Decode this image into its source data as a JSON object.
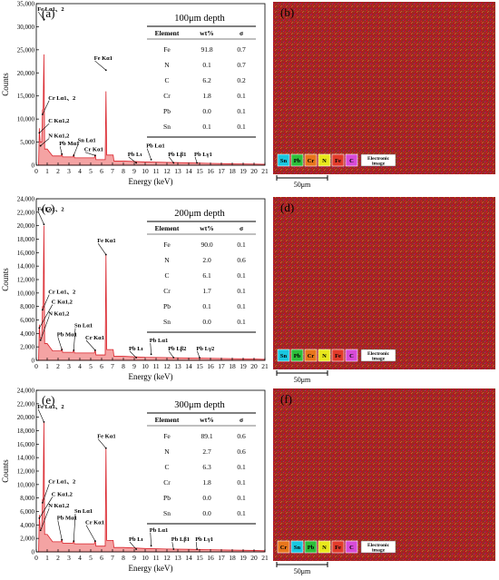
{
  "panels": [
    {
      "letter": "(a)",
      "depth": "100μm depth",
      "table": {
        "headers": [
          "Element",
          "wt%",
          "σ"
        ],
        "rows": [
          [
            "Fe",
            "91.8",
            "0.7"
          ],
          [
            "N",
            "0.1",
            "0.7"
          ],
          [
            "C",
            "6.2",
            "0.2"
          ],
          [
            "Cr",
            "1.8",
            "0.1"
          ],
          [
            "Pb",
            "0.0",
            "0.1"
          ],
          [
            "Sn",
            "0.1",
            "0.1"
          ]
        ]
      },
      "yticks": [
        "0",
        "5,000",
        "10,000",
        "15,000",
        "20,000",
        "25,000",
        "30,000",
        "35,000"
      ],
      "ymax": 35000,
      "map_letter": "(b)",
      "legend": [
        "Sn",
        "Pb",
        "Cr",
        "N",
        "Fe",
        "C"
      ],
      "legend_colors": [
        "#19c7e0",
        "#2dbf3a",
        "#e8761c",
        "#e8e81c",
        "#e23b2a",
        "#d84bd8"
      ],
      "legend_label": "Electronic image",
      "scale": "50μm",
      "annotations": [
        {
          "label": "Fe Lα1、2",
          "x": 0.7,
          "y": 31500,
          "tx": 0.1,
          "ty": 33400
        },
        {
          "label": "Cr Lα1、2",
          "x": 0.57,
          "y": 11000,
          "tx": 1.1,
          "ty": 14200
        },
        {
          "label": "C Kα1,2",
          "x": 0.28,
          "y": 7000,
          "tx": 1.1,
          "ty": 9200
        },
        {
          "label": "N Kα1,2",
          "x": 0.39,
          "y": 4200,
          "tx": 1.1,
          "ty": 6000
        },
        {
          "label": "Pb Mα1",
          "x": 2.35,
          "y": 2400,
          "tx": 2.1,
          "ty": 4300
        },
        {
          "label": "Sn Lα1",
          "x": 3.44,
          "y": 2100,
          "tx": 3.8,
          "ty": 5000
        },
        {
          "label": "Cr Kα1",
          "x": 5.41,
          "y": 2100,
          "tx": 4.4,
          "ty": 3000
        },
        {
          "label": "Fe Kα1",
          "x": 6.4,
          "y": 20600,
          "tx": 5.3,
          "ty": 22800
        },
        {
          "label": "Pb Lι",
          "x": 9.18,
          "y": 500,
          "tx": 8.4,
          "ty": 2000
        },
        {
          "label": "Pb Lα1",
          "x": 10.55,
          "y": 1200,
          "tx": 10.1,
          "ty": 3800
        },
        {
          "label": "Pb Lβ1",
          "x": 12.61,
          "y": 500,
          "tx": 12.1,
          "ty": 2000
        },
        {
          "label": "Pb Lγ1",
          "x": 14.76,
          "y": 500,
          "tx": 14.5,
          "ty": 2000
        }
      ]
    },
    {
      "letter": "(c)",
      "depth": "200μm depth",
      "table": {
        "headers": [
          "Element",
          "wt%",
          "σ"
        ],
        "rows": [
          [
            "Fe",
            "90.0",
            "0.1"
          ],
          [
            "N",
            "2.0",
            "0.6"
          ],
          [
            "C",
            "6.1",
            "0.1"
          ],
          [
            "Cr",
            "1.7",
            "0.1"
          ],
          [
            "Pb",
            "0.1",
            "0.1"
          ],
          [
            "Sn",
            "0.0",
            "0.1"
          ]
        ]
      },
      "yticks": [
        "0",
        "2,000",
        "4,000",
        "6,000",
        "8,000",
        "10,000",
        "12,000",
        "14,000",
        "16,000",
        "18,000",
        "20,000",
        "22,000",
        "24,000"
      ],
      "ymax": 24000,
      "map_letter": "(d)",
      "legend": [
        "Sn",
        "Pb",
        "Cr",
        "N",
        "Fe",
        "C"
      ],
      "legend_colors": [
        "#19c7e0",
        "#2dbf3a",
        "#e8761c",
        "#e8e81c",
        "#e23b2a",
        "#d84bd8"
      ],
      "legend_label": "Electronic image",
      "scale": "50μm",
      "annotations": [
        {
          "label": "Fe Lα1、2",
          "x": 0.7,
          "y": 20200,
          "tx": 0.1,
          "ty": 22200
        },
        {
          "label": "Cr Lα1、2",
          "x": 0.57,
          "y": 7500,
          "tx": 1.1,
          "ty": 9900
        },
        {
          "label": "C Kα1,2",
          "x": 0.28,
          "y": 4800,
          "tx": 1.4,
          "ty": 8400
        },
        {
          "label": "N Kα1,2",
          "x": 0.39,
          "y": 3000,
          "tx": 1.1,
          "ty": 6700
        },
        {
          "label": "Pb Mα1",
          "x": 2.35,
          "y": 1600,
          "tx": 1.9,
          "ty": 3600
        },
        {
          "label": "Sn Lα1",
          "x": 3.44,
          "y": 1500,
          "tx": 3.5,
          "ty": 4900
        },
        {
          "label": "Cr Kα1",
          "x": 5.41,
          "y": 1500,
          "tx": 4.5,
          "ty": 3100
        },
        {
          "label": "Fe Kα1",
          "x": 6.4,
          "y": 15700,
          "tx": 5.6,
          "ty": 17500
        },
        {
          "label": "Pb Lι",
          "x": 9.18,
          "y": 400,
          "tx": 8.5,
          "ty": 1500
        },
        {
          "label": "Pb Lα1",
          "x": 10.55,
          "y": 900,
          "tx": 10.4,
          "ty": 2700
        },
        {
          "label": "Pb Lβ2",
          "x": 12.61,
          "y": 400,
          "tx": 12.1,
          "ty": 1500
        },
        {
          "label": "Pb Lγ2",
          "x": 15.0,
          "y": 400,
          "tx": 14.7,
          "ty": 1500
        }
      ]
    },
    {
      "letter": "(e)",
      "depth": "300μm depth",
      "table": {
        "headers": [
          "Element",
          "wt%",
          "σ"
        ],
        "rows": [
          [
            "Fe",
            "89.1",
            "0.6"
          ],
          [
            "N",
            "2.7",
            "0.6"
          ],
          [
            "C",
            "6.3",
            "0.1"
          ],
          [
            "Cr",
            "1.8",
            "0.1"
          ],
          [
            "Pb",
            "0.0",
            "0.1"
          ],
          [
            "Sn",
            "0.0",
            "0.1"
          ]
        ]
      },
      "yticks": [
        "0",
        "2,000",
        "4,000",
        "6,000",
        "8,000",
        "10,000",
        "12,000",
        "14,000",
        "16,000",
        "18,000",
        "20,000",
        "22,000",
        "24,000"
      ],
      "ymax": 24000,
      "map_letter": "(f)",
      "legend": [
        "Cr",
        "Sn",
        "Pb",
        "N",
        "Fe",
        "C"
      ],
      "legend_colors": [
        "#e8761c",
        "#19c7e0",
        "#2dbf3a",
        "#e8e81c",
        "#e23b2a",
        "#d84bd8"
      ],
      "legend_label": "Electronic image",
      "scale": "50μm",
      "annotations": [
        {
          "label": "Fe Lα1、2",
          "x": 0.7,
          "y": 19300,
          "tx": 0.1,
          "ty": 21300
        },
        {
          "label": "Cr Lα1、2",
          "x": 0.57,
          "y": 7300,
          "tx": 1.1,
          "ty": 10200
        },
        {
          "label": "C Kα1,2",
          "x": 0.28,
          "y": 5000,
          "tx": 1.4,
          "ty": 8300
        },
        {
          "label": "N Kα1,2",
          "x": 0.39,
          "y": 3200,
          "tx": 1.1,
          "ty": 6600
        },
        {
          "label": "Pb Mα1",
          "x": 2.35,
          "y": 1800,
          "tx": 1.9,
          "ty": 4800
        },
        {
          "label": "Sn Lα1",
          "x": 3.44,
          "y": 1600,
          "tx": 3.5,
          "ty": 5800
        },
        {
          "label": "Cr Kα1",
          "x": 5.41,
          "y": 1600,
          "tx": 4.5,
          "ty": 4100
        },
        {
          "label": "Fe Kα1",
          "x": 6.4,
          "y": 15400,
          "tx": 5.6,
          "ty": 16900
        },
        {
          "label": "Pb Lι",
          "x": 9.18,
          "y": 400,
          "tx": 8.5,
          "ty": 1600
        },
        {
          "label": "Pb Lα1",
          "x": 10.55,
          "y": 900,
          "tx": 10.4,
          "ty": 3000
        },
        {
          "label": "Pb Lβ1",
          "x": 12.61,
          "y": 400,
          "tx": 12.4,
          "ty": 1600
        },
        {
          "label": "Pb Lγ1",
          "x": 14.76,
          "y": 400,
          "tx": 14.6,
          "ty": 1600
        }
      ]
    }
  ],
  "xticks": [
    "0",
    "1",
    "2",
    "3",
    "4",
    "5",
    "6",
    "7",
    "8",
    "9",
    "10",
    "11",
    "12",
    "13",
    "14",
    "15",
    "16",
    "17",
    "18",
    "19",
    "20",
    "21"
  ],
  "xlabel": "Energy (keV)",
  "ylabel": "Counts",
  "chart_data": [
    {
      "type": "area",
      "xlabel": "Energy (keV)",
      "ylabel": "Counts",
      "xlim": [
        0,
        21
      ],
      "ylim": [
        0,
        35000
      ],
      "series": [
        {
          "x": [
            0.05,
            0.28,
            0.39,
            0.57,
            0.7,
            1.0,
            1.5,
            2.35,
            3.0,
            3.44,
            4.0,
            5.41,
            5.9,
            6.4,
            7.06,
            8,
            10,
            12,
            14,
            16,
            18,
            20,
            21
          ],
          "values": [
            0,
            8000,
            5000,
            12000,
            24000,
            3500,
            2000,
            2500,
            1800,
            2300,
            1600,
            2300,
            1200,
            16000,
            2200,
            900,
            700,
            600,
            500,
            400,
            300,
            250,
            200
          ]
        }
      ]
    },
    {
      "type": "area",
      "xlabel": "Energy (keV)",
      "ylabel": "Counts",
      "xlim": [
        0,
        21
      ],
      "ylim": [
        0,
        24000
      ],
      "series": [
        {
          "x": [
            0.05,
            0.28,
            0.39,
            0.57,
            0.7,
            1.0,
            1.5,
            2.35,
            3.0,
            3.44,
            4.0,
            5.41,
            5.9,
            6.4,
            7.06,
            8,
            10,
            12,
            14,
            16,
            18,
            20,
            21
          ],
          "values": [
            0,
            5300,
            3300,
            8000,
            20000,
            2500,
            1400,
            1700,
            1200,
            1600,
            1100,
            1600,
            800,
            15800,
            1600,
            600,
            450,
            400,
            350,
            300,
            250,
            200,
            150
          ]
        }
      ]
    },
    {
      "type": "area",
      "xlabel": "Energy (keV)",
      "ylabel": "Counts",
      "xlim": [
        0,
        21
      ],
      "ylim": [
        0,
        24000
      ],
      "series": [
        {
          "x": [
            0.05,
            0.28,
            0.39,
            0.57,
            0.7,
            1.0,
            1.5,
            2.35,
            3.0,
            3.44,
            4.0,
            5.41,
            5.9,
            6.4,
            7.06,
            8,
            10,
            12,
            14,
            16,
            18,
            20,
            21
          ],
          "values": [
            0,
            5500,
            3500,
            7800,
            19400,
            2600,
            1500,
            1900,
            1300,
            1700,
            1200,
            1700,
            850,
            15500,
            1700,
            650,
            500,
            420,
            380,
            320,
            260,
            210,
            160
          ]
        }
      ]
    }
  ]
}
